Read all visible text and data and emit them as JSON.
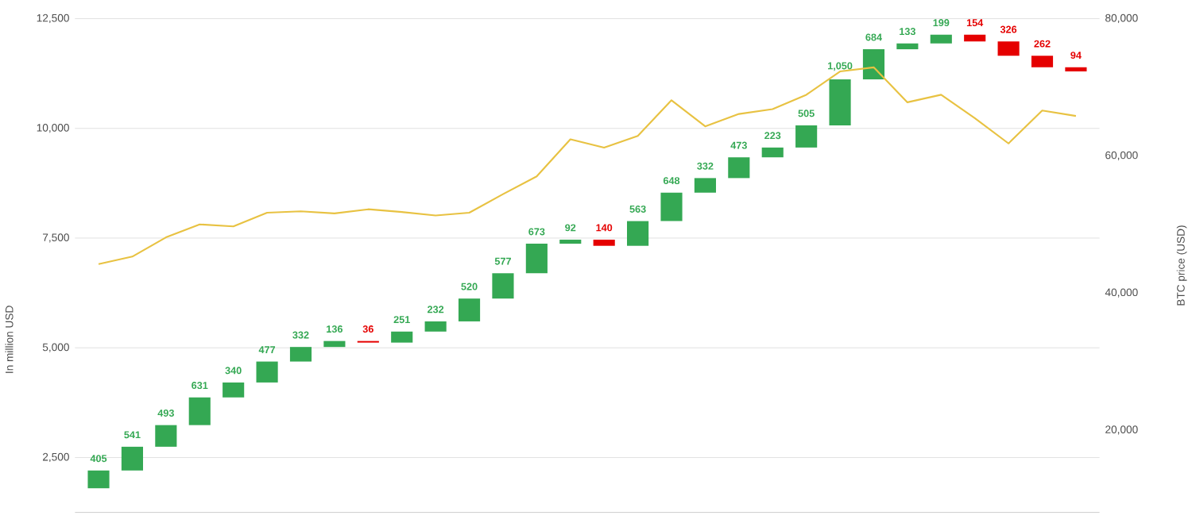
{
  "chart_data": {
    "type": "bar",
    "ylabel": "In million USD",
    "y2label": "BTC price (USD)",
    "categories": [
      null,
      null,
      null,
      null,
      null,
      null,
      null,
      null,
      null,
      null,
      null,
      null,
      null,
      null,
      null,
      null,
      null,
      null,
      null,
      null,
      null,
      null,
      null,
      null,
      null,
      null,
      null,
      null,
      null,
      null
    ],
    "series": [
      {
        "values": [
          405,
          541,
          493,
          631,
          340,
          477,
          332,
          136,
          -36,
          251,
          232,
          520,
          577,
          673,
          92,
          -140,
          563,
          648,
          332,
          473,
          223,
          505,
          1050,
          684,
          133,
          199,
          -154,
          -326,
          -262,
          -94
        ],
        "base": [
          1800,
          2205,
          2746,
          3239,
          3870,
          4210,
          4687,
          5019,
          5155,
          5119,
          5370,
          5602,
          6122,
          6699,
          7372,
          7464,
          7324,
          7887,
          8535,
          8867,
          9340,
          9563,
          10068,
          11118,
          11802,
          11935,
          12134,
          11980,
          11654,
          11392
        ],
        "colors": [
          "#34a853",
          "#34a853",
          "#34a853",
          "#34a853",
          "#34a853",
          "#34a853",
          "#34a853",
          "#34a853",
          "#e50000",
          "#34a853",
          "#34a853",
          "#34a853",
          "#34a853",
          "#34a853",
          "#34a853",
          "#e50000",
          "#34a853",
          "#34a853",
          "#34a853",
          "#34a853",
          "#34a853",
          "#34a853",
          "#34a853",
          "#34a853",
          "#34a853",
          "#34a853",
          "#e50000",
          "#e50000",
          "#e50000",
          "#e50000"
        ],
        "value_labels": [
          "405",
          "541",
          "493",
          "631",
          "340",
          "477",
          "332",
          "136",
          "36",
          "251",
          "232",
          "520",
          "577",
          "673",
          "92",
          "140",
          "563",
          "648",
          "332",
          "473",
          "223",
          "505",
          "1,050",
          "684",
          "133",
          "199",
          "154",
          "326",
          "262",
          "94"
        ]
      },
      {
        "type": "line",
        "axis": "y2",
        "color": "#e8c242",
        "values": [
          44200,
          45300,
          48100,
          50000,
          49700,
          51700,
          51900,
          51600,
          52200,
          51800,
          51300,
          51700,
          54400,
          57000,
          62400,
          61200,
          62900,
          68100,
          64300,
          66100,
          66800,
          68900,
          72300,
          72900,
          67800,
          68900,
          65500,
          61800,
          66600,
          65800
        ]
      }
    ],
    "ylim": [
      1250,
      12500
    ],
    "yticks": [
      {
        "value": 2500,
        "label": "2,500"
      },
      {
        "value": 5000,
        "label": "5,000"
      },
      {
        "value": 7500,
        "label": "7,500"
      },
      {
        "value": 10000,
        "label": "10,000"
      },
      {
        "value": 12500,
        "label": "12,500"
      }
    ],
    "y2lim": [
      8000,
      80000
    ],
    "y2ticks": [
      {
        "value": 20000,
        "label": "20,000"
      },
      {
        "value": 40000,
        "label": "40,000"
      },
      {
        "value": 60000,
        "label": "60,000"
      },
      {
        "value": 80000,
        "label": "80,000"
      }
    ],
    "grid": "y"
  }
}
